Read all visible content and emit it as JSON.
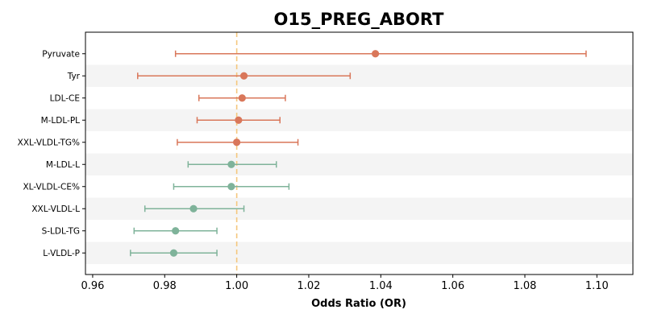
{
  "chart_data": {
    "type": "forest",
    "title": "O15_PREG_ABORT",
    "xlabel": "Odds Ratio (OR)",
    "ylabel": "",
    "xlim": [
      0.958,
      1.11
    ],
    "xticks": [
      0.96,
      0.98,
      1.0,
      1.02,
      1.04,
      1.06,
      1.08,
      1.1
    ],
    "xtick_labels": [
      "0.96",
      "0.98",
      "1.00",
      "1.02",
      "1.04",
      "1.06",
      "1.08",
      "1.10"
    ],
    "reference_line": 1.0,
    "grid": false,
    "colors": {
      "positive": "#d9775a",
      "negative": "#7fb39a",
      "reference": "#f5c77e",
      "band": "#f4f4f4"
    },
    "rows": [
      {
        "label": "Pyruvate",
        "or": 1.0385,
        "lo": 0.983,
        "hi": 1.097,
        "group": "positive"
      },
      {
        "label": "Tyr",
        "or": 1.002,
        "lo": 0.9725,
        "hi": 1.0315,
        "group": "positive"
      },
      {
        "label": "LDL-CE",
        "or": 1.0015,
        "lo": 0.9895,
        "hi": 1.0135,
        "group": "positive"
      },
      {
        "label": "M-LDL-PL",
        "or": 1.0005,
        "lo": 0.989,
        "hi": 1.012,
        "group": "positive"
      },
      {
        "label": "XXL-VLDL-TG%",
        "or": 1.0,
        "lo": 0.9835,
        "hi": 1.017,
        "group": "positive"
      },
      {
        "label": "M-LDL-L",
        "or": 0.9985,
        "lo": 0.9865,
        "hi": 1.011,
        "group": "negative"
      },
      {
        "label": "XL-VLDL-CE%",
        "or": 0.9985,
        "lo": 0.9825,
        "hi": 1.0145,
        "group": "negative"
      },
      {
        "label": "XXL-VLDL-L",
        "or": 0.988,
        "lo": 0.9745,
        "hi": 1.002,
        "group": "negative"
      },
      {
        "label": "S-LDL-TG",
        "or": 0.983,
        "lo": 0.9715,
        "hi": 0.9945,
        "group": "negative"
      },
      {
        "label": "L-VLDL-P",
        "or": 0.9825,
        "lo": 0.9705,
        "hi": 0.9945,
        "group": "negative"
      }
    ]
  }
}
